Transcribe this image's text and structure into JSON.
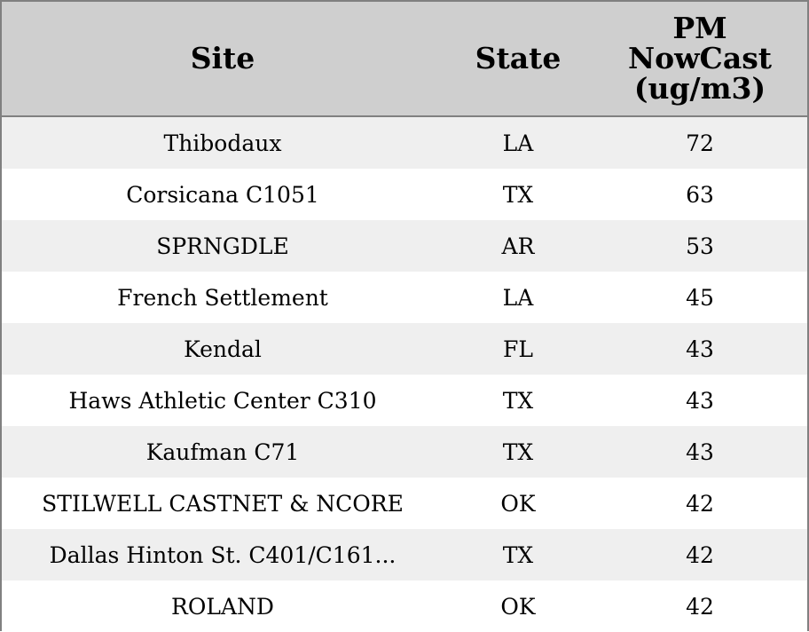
{
  "chart_data": {
    "type": "table",
    "columns": [
      "Site",
      "State",
      "PM\nNowCast\n(ug/m3)"
    ],
    "rows": [
      {
        "site": "Thibodaux",
        "state": "LA",
        "value": "72"
      },
      {
        "site": "Corsicana C1051",
        "state": "TX",
        "value": "63"
      },
      {
        "site": "SPRNGDLE",
        "state": "AR",
        "value": "53"
      },
      {
        "site": "French Settlement",
        "state": "LA",
        "value": "45"
      },
      {
        "site": "Kendal",
        "state": "FL",
        "value": "43"
      },
      {
        "site": "Haws Athletic Center C310",
        "state": "TX",
        "value": "43"
      },
      {
        "site": "Kaufman C71",
        "state": "TX",
        "value": "43"
      },
      {
        "site": "STILWELL CASTNET & NCORE",
        "state": "OK",
        "value": "42"
      },
      {
        "site": "Dallas Hinton St. C401/C161...",
        "state": "TX",
        "value": "42"
      },
      {
        "site": "ROLAND",
        "state": "OK",
        "value": "42"
      }
    ],
    "colors": {
      "header_background": "#cfcfcf",
      "alternate_row_background": "#efefef",
      "border": "#808080"
    }
  }
}
